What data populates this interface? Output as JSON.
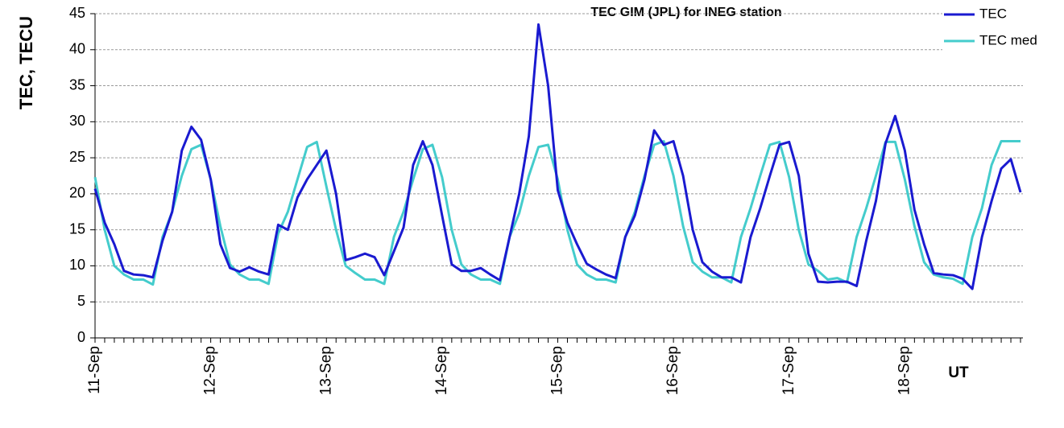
{
  "chart_data": {
    "type": "line",
    "title": "TEC GIM (JPL) for INEG station",
    "y_label": "TEC, TECU",
    "x_label": "UT",
    "categories": [
      "11-Sep",
      null,
      null,
      null,
      null,
      null,
      null,
      null,
      null,
      null,
      null,
      null,
      "12-Sep",
      null,
      null,
      null,
      null,
      null,
      null,
      null,
      null,
      null,
      null,
      null,
      "13-Sep",
      null,
      null,
      null,
      null,
      null,
      null,
      null,
      null,
      null,
      null,
      null,
      "14-Sep",
      null,
      null,
      null,
      null,
      null,
      null,
      null,
      null,
      null,
      null,
      null,
      "15-Sep",
      null,
      null,
      null,
      null,
      null,
      null,
      null,
      null,
      null,
      null,
      null,
      "16-Sep",
      null,
      null,
      null,
      null,
      null,
      null,
      null,
      null,
      null,
      null,
      null,
      "17-Sep",
      null,
      null,
      null,
      null,
      null,
      null,
      null,
      null,
      null,
      null,
      null,
      "18-Sep",
      null,
      null,
      null,
      null,
      null,
      null,
      null,
      null,
      null,
      null,
      null,
      null
    ],
    "series": [
      {
        "name": "TEC",
        "color": "#1a1ad0",
        "values": [
          20.7,
          16,
          13,
          9.3,
          8.8,
          8.7,
          8.4,
          13.5,
          17.5,
          26,
          29.3,
          27.5,
          22,
          13,
          9.7,
          9.2,
          9.8,
          9.2,
          8.8,
          15.7,
          15,
          19.5,
          22,
          24,
          26,
          20,
          10.8,
          11.2,
          11.7,
          11.2,
          8.7,
          12,
          15.3,
          24,
          27.3,
          24,
          17,
          10.2,
          9.3,
          9.3,
          9.7,
          8.8,
          8,
          14,
          20,
          28,
          43.5,
          35,
          20.5,
          16,
          13,
          10.3,
          9.5,
          8.8,
          8.3,
          14,
          17,
          22,
          28.8,
          26.8,
          27.3,
          22.5,
          15,
          10.5,
          9.2,
          8.4,
          8.4,
          7.7,
          14,
          18,
          22.5,
          26.8,
          27.2,
          22.5,
          11.7,
          7.8,
          7.7,
          7.8,
          7.8,
          7.2,
          13.5,
          19,
          27,
          30.8,
          26,
          17.8,
          13,
          9,
          8.8,
          8.7,
          8.2,
          6.8,
          14,
          19,
          23.5,
          24.8,
          20.2
        ]
      },
      {
        "name": "TEC med",
        "color": "#44cccc",
        "values": [
          22.3,
          15,
          10,
          8.8,
          8.1,
          8.1,
          7.4,
          14,
          17.5,
          22.5,
          26.2,
          26.8,
          22,
          15.5,
          10.2,
          8.8,
          8.1,
          8.1,
          7.5,
          14.5,
          17.5,
          22,
          26.5,
          27.2,
          21,
          15,
          10,
          9,
          8.1,
          8.1,
          7.5,
          14,
          17.5,
          22,
          26.2,
          26.8,
          22.3,
          15,
          10.2,
          8.8,
          8.1,
          8.1,
          7.5,
          14,
          17.3,
          22.5,
          26.5,
          26.8,
          22,
          15,
          10.2,
          8.8,
          8.1,
          8.1,
          7.7,
          14,
          17.5,
          22.5,
          26.8,
          27.3,
          22.5,
          15.5,
          10.5,
          9.2,
          8.4,
          8.4,
          7.7,
          14,
          18,
          22.5,
          26.8,
          27.2,
          22.3,
          15,
          10.2,
          9.3,
          8.1,
          8.3,
          7.7,
          14,
          18,
          22.5,
          27.2,
          27.2,
          22,
          15.5,
          10.5,
          8.8,
          8.4,
          8.2,
          7.5,
          14,
          18,
          24,
          27.3,
          27.3,
          27.3
        ]
      }
    ],
    "ylim": [
      0,
      45
    ],
    "yticks": [
      0,
      5,
      10,
      15,
      20,
      25,
      30,
      35,
      40,
      45
    ],
    "grid": true,
    "legend": "top-right"
  }
}
